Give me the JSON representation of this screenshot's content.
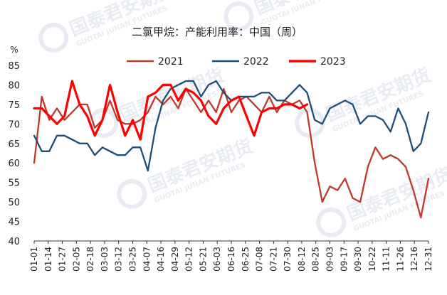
{
  "chart_data": {
    "type": "line",
    "title": "二氯甲烷：产能利用率：中国（周）",
    "ylabel": "%",
    "xlabel": "",
    "ylim": [
      40,
      85
    ],
    "yticks": [
      40,
      45,
      50,
      55,
      60,
      65,
      70,
      75,
      80,
      85
    ],
    "xlim": [
      "01-01",
      "12-31"
    ],
    "x_tick_labels": [
      "01-01",
      "01-14",
      "01-27",
      "02-05",
      "02-18",
      "03-03",
      "03-12",
      "03-25",
      "04-07",
      "04-16",
      "04-29",
      "05-12",
      "05-21",
      "06-03",
      "06-16",
      "06-25",
      "07-08",
      "07-21",
      "07-30",
      "08-12",
      "08-25",
      "09-03",
      "09-17",
      "09-30",
      "10-22",
      "11-11",
      "11-26",
      "12-16",
      "12-31"
    ],
    "legend": "top-center",
    "grid": false,
    "series": [
      {
        "name": "2021",
        "color": "#c0392b",
        "points": [
          [
            "01-01",
            60
          ],
          [
            "01-08",
            77
          ],
          [
            "01-15",
            71
          ],
          [
            "01-22",
            74
          ],
          [
            "01-29",
            71
          ],
          [
            "02-05",
            73
          ],
          [
            "02-12",
            75
          ],
          [
            "02-19",
            75
          ],
          [
            "02-26",
            69
          ],
          [
            "03-05",
            71
          ],
          [
            "03-12",
            76
          ],
          [
            "03-19",
            71
          ],
          [
            "03-26",
            70
          ],
          [
            "04-02",
            70
          ],
          [
            "04-09",
            71
          ],
          [
            "04-16",
            73
          ],
          [
            "04-23",
            77
          ],
          [
            "04-30",
            75
          ],
          [
            "05-07",
            77
          ],
          [
            "05-14",
            74
          ],
          [
            "05-21",
            79
          ],
          [
            "05-28",
            76
          ],
          [
            "06-04",
            73
          ],
          [
            "06-11",
            76
          ],
          [
            "06-18",
            73
          ],
          [
            "06-25",
            79
          ],
          [
            "07-02",
            73
          ],
          [
            "07-09",
            76
          ],
          [
            "07-16",
            77
          ],
          [
            "07-23",
            75
          ],
          [
            "07-30",
            73
          ],
          [
            "08-06",
            77
          ],
          [
            "08-13",
            73
          ],
          [
            "08-20",
            76
          ],
          [
            "08-27",
            75
          ],
          [
            "09-03",
            76
          ],
          [
            "09-10",
            73
          ],
          [
            "09-17",
            60
          ],
          [
            "09-24",
            50
          ],
          [
            "10-01",
            54
          ],
          [
            "10-08",
            53
          ],
          [
            "10-15",
            56
          ],
          [
            "10-22",
            51
          ],
          [
            "10-29",
            50
          ],
          [
            "11-05",
            59
          ],
          [
            "11-12",
            64
          ],
          [
            "11-19",
            61
          ],
          [
            "11-26",
            62
          ],
          [
            "12-03",
            61
          ],
          [
            "12-10",
            59
          ],
          [
            "12-17",
            53
          ],
          [
            "12-24",
            46
          ],
          [
            "12-31",
            56
          ]
        ]
      },
      {
        "name": "2022",
        "color": "#1f4e79",
        "points": [
          [
            "01-01",
            67
          ],
          [
            "01-08",
            63
          ],
          [
            "01-15",
            63
          ],
          [
            "01-22",
            67
          ],
          [
            "01-29",
            67
          ],
          [
            "02-05",
            66
          ],
          [
            "02-12",
            65
          ],
          [
            "02-19",
            65
          ],
          [
            "02-26",
            62
          ],
          [
            "03-05",
            64
          ],
          [
            "03-12",
            63
          ],
          [
            "03-19",
            62
          ],
          [
            "03-26",
            62
          ],
          [
            "04-02",
            64
          ],
          [
            "04-09",
            64
          ],
          [
            "04-16",
            58
          ],
          [
            "04-23",
            69
          ],
          [
            "04-30",
            76
          ],
          [
            "05-07",
            79
          ],
          [
            "05-14",
            80
          ],
          [
            "05-21",
            81
          ],
          [
            "05-28",
            81
          ],
          [
            "06-04",
            77
          ],
          [
            "06-11",
            80
          ],
          [
            "06-18",
            81
          ],
          [
            "06-25",
            78
          ],
          [
            "07-02",
            76
          ],
          [
            "07-09",
            77
          ],
          [
            "07-16",
            77
          ],
          [
            "07-23",
            77
          ],
          [
            "07-30",
            78
          ],
          [
            "08-06",
            78
          ],
          [
            "08-13",
            76
          ],
          [
            "08-20",
            76
          ],
          [
            "08-27",
            78
          ],
          [
            "09-03",
            80
          ],
          [
            "09-10",
            78
          ],
          [
            "09-17",
            71
          ],
          [
            "09-24",
            70
          ],
          [
            "10-01",
            74
          ],
          [
            "10-08",
            75
          ],
          [
            "10-15",
            76
          ],
          [
            "10-22",
            75
          ],
          [
            "10-29",
            70
          ],
          [
            "11-05",
            72
          ],
          [
            "11-12",
            72
          ],
          [
            "11-19",
            71
          ],
          [
            "11-26",
            68
          ],
          [
            "12-03",
            74
          ],
          [
            "12-10",
            70
          ],
          [
            "12-17",
            63
          ],
          [
            "12-24",
            65
          ],
          [
            "12-31",
            73
          ]
        ]
      },
      {
        "name": "2023",
        "color": "#ff0000",
        "points": [
          [
            "01-01",
            74
          ],
          [
            "01-08",
            74
          ],
          [
            "01-15",
            72
          ],
          [
            "01-22",
            70
          ],
          [
            "01-29",
            72
          ],
          [
            "02-05",
            81
          ],
          [
            "02-12",
            75
          ],
          [
            "02-19",
            72
          ],
          [
            "02-26",
            67
          ],
          [
            "03-05",
            71
          ],
          [
            "03-12",
            80
          ],
          [
            "03-19",
            73
          ],
          [
            "03-26",
            67
          ],
          [
            "04-02",
            71
          ],
          [
            "04-09",
            66
          ],
          [
            "04-16",
            77
          ],
          [
            "04-23",
            78
          ],
          [
            "04-30",
            80
          ],
          [
            "05-07",
            80
          ],
          [
            "05-14",
            76
          ],
          [
            "05-21",
            79
          ],
          [
            "05-28",
            78
          ],
          [
            "06-04",
            76
          ],
          [
            "06-11",
            72
          ],
          [
            "06-18",
            70
          ],
          [
            "06-25",
            74
          ],
          [
            "07-02",
            76
          ],
          [
            "07-09",
            77
          ],
          [
            "07-16",
            72
          ],
          [
            "07-23",
            67
          ],
          [
            "07-30",
            73
          ],
          [
            "08-06",
            74
          ],
          [
            "08-13",
            74
          ],
          [
            "08-20",
            75
          ],
          [
            "08-27",
            75
          ],
          [
            "09-03",
            74
          ],
          [
            "09-10",
            75
          ]
        ]
      }
    ]
  },
  "watermark": {
    "brand_cn": "国泰君安期货",
    "brand_en": "GUOTAI JUNAN FUTURES"
  }
}
